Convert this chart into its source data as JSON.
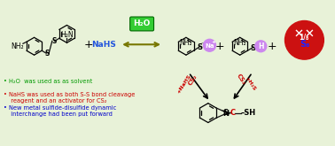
{
  "bg_color": "#e8f2d8",
  "bullet_points": [
    {
      "text": "• H₂O  was used as as solvent",
      "color": "#009900"
    },
    {
      "text": "• NaHS was used as both S-S bond cleavage\n  reagent and an activator for CS₂",
      "color": "#cc0000"
    },
    {
      "text": "• New metal sulfide-disulfide dynamic\n  interchange had been put forward",
      "color": "#0000cc"
    }
  ],
  "h2o_box_color": "#33cc33",
  "h2o_text_color": "#ffffff",
  "nahs_text_color": "#2255dd",
  "na_sphere_color": "#cc88ee",
  "h_sphere_color": "#cc88ee",
  "s8_circle_color": "#cc1111",
  "cs2_color": "#cc0000",
  "arrow_color": "#888800",
  "bond_color": "#111111"
}
